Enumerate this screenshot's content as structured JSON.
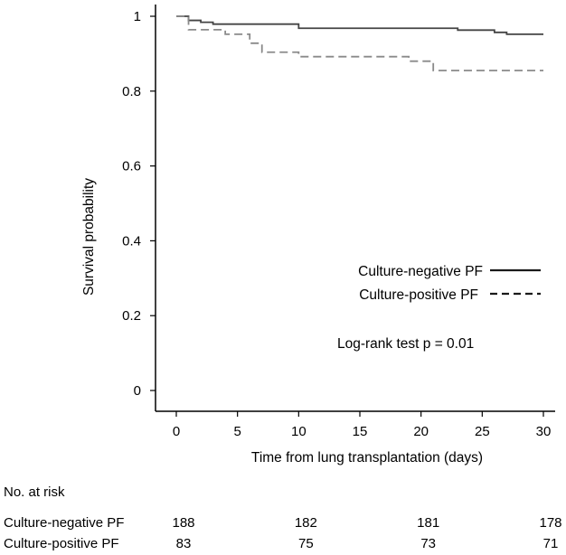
{
  "chart_data": {
    "type": "line",
    "title": "",
    "xlabel": "Time from lung transplantation (days)",
    "ylabel": "Survival probability",
    "xlim": [
      0,
      30
    ],
    "ylim": [
      0,
      1
    ],
    "x_ticks": [
      0,
      5,
      10,
      15,
      20,
      25,
      30
    ],
    "y_ticks": [
      0,
      0.2,
      0.4,
      0.6,
      0.8,
      1
    ],
    "grid": false,
    "legend_position": "right",
    "annotation": "Log-rank test p = 0.01",
    "series": [
      {
        "name": "Culture-negative PF",
        "style": "solid",
        "steps": [
          [
            0,
            1.0
          ],
          [
            1,
            0.989
          ],
          [
            2,
            0.984
          ],
          [
            3,
            0.979
          ],
          [
            10,
            0.968
          ],
          [
            23,
            0.963
          ],
          [
            26,
            0.957
          ],
          [
            27,
            0.952
          ],
          [
            30,
            0.952
          ]
        ]
      },
      {
        "name": "Culture-positive PF",
        "style": "dashed",
        "steps": [
          [
            0,
            1.0
          ],
          [
            1,
            0.964
          ],
          [
            4,
            0.952
          ],
          [
            6,
            0.928
          ],
          [
            7,
            0.904
          ],
          [
            10,
            0.892
          ],
          [
            19,
            0.88
          ],
          [
            21,
            0.855
          ],
          [
            30,
            0.855
          ]
        ]
      }
    ],
    "risk_table": {
      "title": "No. at risk",
      "times": [
        0,
        10,
        20,
        30
      ],
      "rows": [
        {
          "label": "Culture-negative PF",
          "values": [
            "188",
            "182",
            "181",
            "178"
          ]
        },
        {
          "label": "Culture-positive PF",
          "values": [
            "83",
            "75",
            "73",
            "71"
          ]
        }
      ]
    }
  }
}
